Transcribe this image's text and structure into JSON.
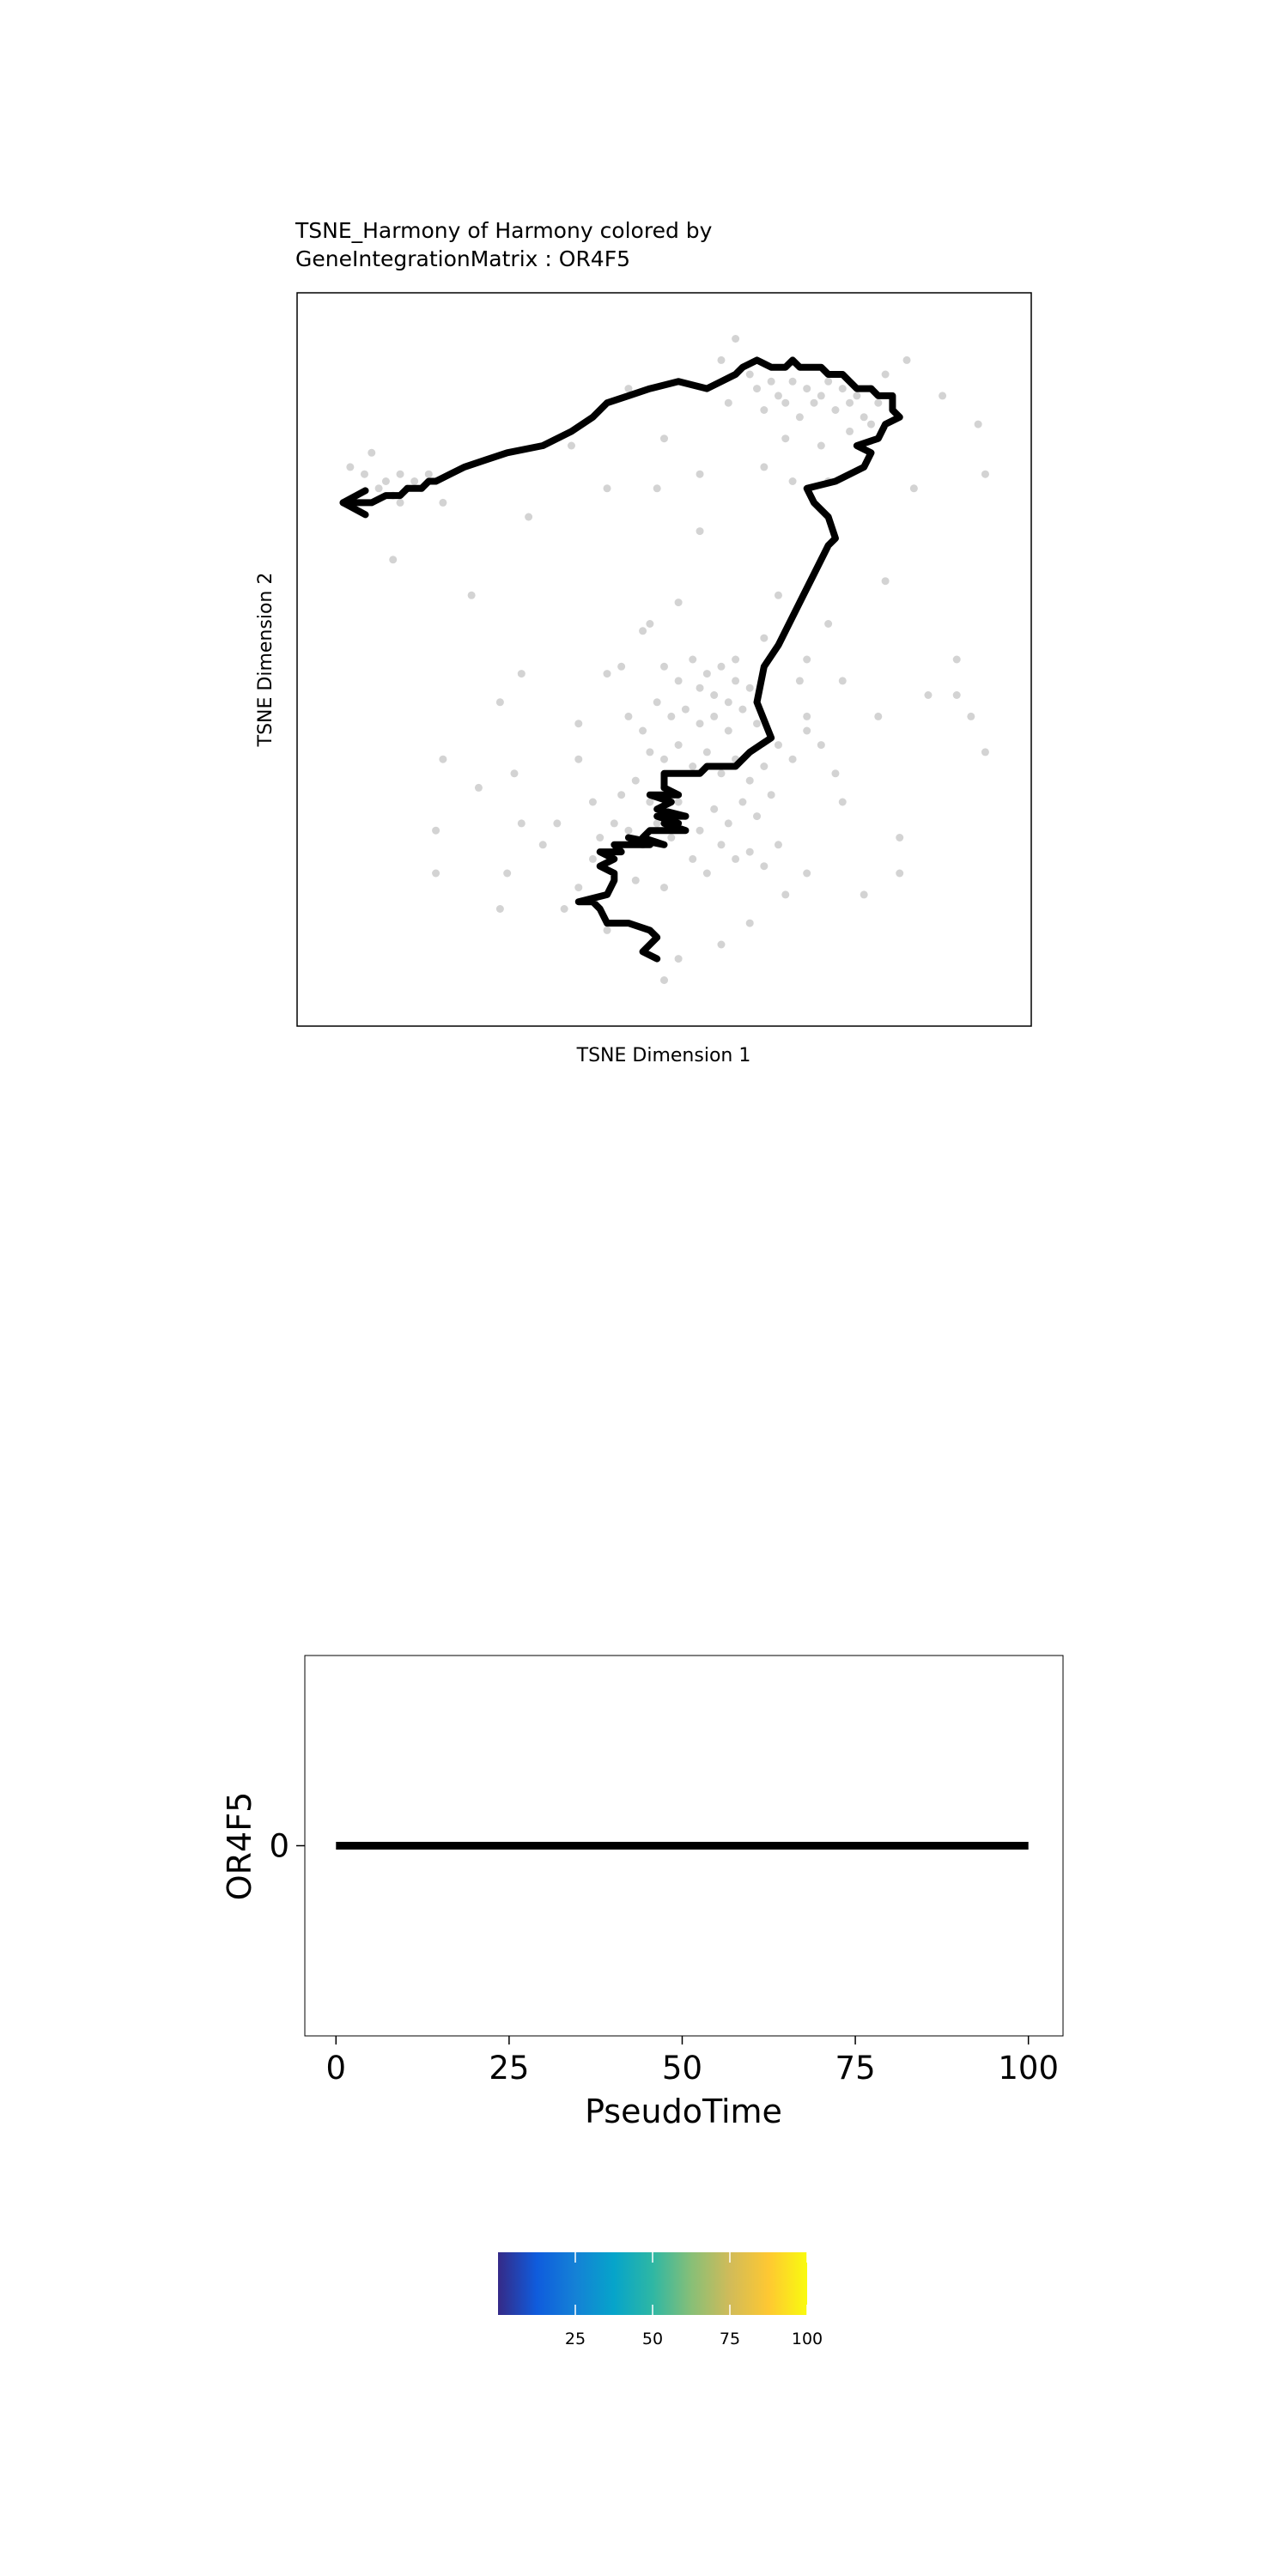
{
  "chart_data": [
    {
      "type": "scatter",
      "title_line1": "TSNE_Harmony of Harmony colored by",
      "title_line2": "GeneIntegrationMatrix : OR4F5",
      "xlabel": "TSNE Dimension 1",
      "ylabel": "TSNE Dimension 2",
      "xlim": [
        0,
        100
      ],
      "ylim": [
        0,
        100
      ],
      "grid": false,
      "point_color": "#d3d3d3",
      "trajectory_color": "#000000",
      "points": [
        [
          6,
          77
        ],
        [
          8,
          76
        ],
        [
          10,
          74
        ],
        [
          11,
          75
        ],
        [
          12,
          73
        ],
        [
          13,
          76
        ],
        [
          14,
          74
        ],
        [
          15,
          75
        ],
        [
          16,
          74
        ],
        [
          17,
          76
        ],
        [
          19,
          72
        ],
        [
          13,
          72
        ],
        [
          12,
          64
        ],
        [
          9,
          79
        ],
        [
          23,
          59
        ],
        [
          31,
          70
        ],
        [
          37,
          80
        ],
        [
          45,
          88
        ],
        [
          50,
          81
        ],
        [
          55,
          76
        ],
        [
          58,
          92
        ],
        [
          59,
          86
        ],
        [
          60,
          95
        ],
        [
          62,
          90
        ],
        [
          63,
          88
        ],
        [
          64,
          85
        ],
        [
          65,
          89
        ],
        [
          66,
          87
        ],
        [
          67,
          86
        ],
        [
          68,
          89
        ],
        [
          69,
          84
        ],
        [
          70,
          88
        ],
        [
          71,
          86
        ],
        [
          72,
          87
        ],
        [
          73,
          89
        ],
        [
          74,
          85
        ],
        [
          75,
          88
        ],
        [
          76,
          86
        ],
        [
          77,
          87
        ],
        [
          78,
          84
        ],
        [
          79,
          88
        ],
        [
          80,
          86
        ],
        [
          81,
          90
        ],
        [
          67,
          81
        ],
        [
          72,
          80
        ],
        [
          76,
          82
        ],
        [
          79,
          83
        ],
        [
          84,
          92
        ],
        [
          89,
          87
        ],
        [
          94,
          83
        ],
        [
          95,
          76
        ],
        [
          85,
          74
        ],
        [
          64,
          77
        ],
        [
          68,
          75
        ],
        [
          73,
          75
        ],
        [
          55,
          68
        ],
        [
          49,
          74
        ],
        [
          42,
          74
        ],
        [
          81,
          61
        ],
        [
          73,
          55
        ],
        [
          66,
          59
        ],
        [
          47,
          54
        ],
        [
          44,
          49
        ],
        [
          50,
          49
        ],
        [
          52,
          47
        ],
        [
          54,
          50
        ],
        [
          55,
          46
        ],
        [
          56,
          48
        ],
        [
          57,
          45
        ],
        [
          58,
          49
        ],
        [
          59,
          44
        ],
        [
          60,
          47
        ],
        [
          61,
          43
        ],
        [
          62,
          46
        ],
        [
          63,
          41
        ],
        [
          59,
          40
        ],
        [
          57,
          42
        ],
        [
          55,
          41
        ],
        [
          53,
          43
        ],
        [
          51,
          42
        ],
        [
          49,
          44
        ],
        [
          47,
          40
        ],
        [
          45,
          42
        ],
        [
          48,
          37
        ],
        [
          50,
          36
        ],
        [
          52,
          38
        ],
        [
          54,
          35
        ],
        [
          56,
          37
        ],
        [
          58,
          34
        ],
        [
          60,
          36
        ],
        [
          62,
          33
        ],
        [
          64,
          35
        ],
        [
          66,
          38
        ],
        [
          68,
          36
        ],
        [
          70,
          40
        ],
        [
          65,
          31
        ],
        [
          63,
          28
        ],
        [
          61,
          30
        ],
        [
          59,
          27
        ],
        [
          57,
          29
        ],
        [
          55,
          26
        ],
        [
          53,
          28
        ],
        [
          51,
          25
        ],
        [
          49,
          27
        ],
        [
          47,
          24
        ],
        [
          45,
          26
        ],
        [
          43,
          23
        ],
        [
          41,
          25
        ],
        [
          44,
          31
        ],
        [
          46,
          33
        ],
        [
          48,
          30
        ],
        [
          50,
          32
        ],
        [
          52,
          30
        ],
        [
          54,
          22
        ],
        [
          56,
          20
        ],
        [
          58,
          24
        ],
        [
          60,
          22
        ],
        [
          62,
          23
        ],
        [
          64,
          21
        ],
        [
          66,
          24
        ],
        [
          69,
          47
        ],
        [
          70,
          42
        ],
        [
          72,
          38
        ],
        [
          74,
          34
        ],
        [
          75,
          30
        ],
        [
          30,
          48
        ],
        [
          27,
          44
        ],
        [
          38,
          41
        ],
        [
          38,
          36
        ],
        [
          35,
          27
        ],
        [
          30,
          27
        ],
        [
          33,
          24
        ],
        [
          28,
          20
        ],
        [
          18,
          26
        ],
        [
          18,
          20
        ],
        [
          27,
          15
        ],
        [
          36,
          15
        ],
        [
          42,
          12
        ],
        [
          52,
          8
        ],
        [
          58,
          10
        ],
        [
          62,
          13
        ],
        [
          67,
          17
        ],
        [
          70,
          20
        ],
        [
          78,
          17
        ],
        [
          83,
          25
        ],
        [
          83,
          20
        ],
        [
          91,
          50
        ],
        [
          91,
          45
        ],
        [
          93,
          42
        ],
        [
          95,
          37
        ],
        [
          87,
          45
        ],
        [
          80,
          42
        ],
        [
          75,
          47
        ],
        [
          70,
          50
        ],
        [
          64,
          53
        ],
        [
          60,
          50
        ],
        [
          42,
          48
        ],
        [
          48,
          55
        ],
        [
          52,
          58
        ],
        [
          43,
          27
        ],
        [
          40,
          30
        ],
        [
          46,
          19
        ],
        [
          50,
          18
        ],
        [
          40,
          22
        ],
        [
          38,
          18
        ],
        [
          29,
          34
        ],
        [
          24,
          32
        ],
        [
          19,
          36
        ],
        [
          50,
          5
        ]
      ],
      "trajectory": [
        [
          49,
          8
        ],
        [
          47,
          9
        ],
        [
          49,
          11
        ],
        [
          48,
          12
        ],
        [
          45,
          13
        ],
        [
          42,
          13
        ],
        [
          41,
          15
        ],
        [
          40,
          16
        ],
        [
          38,
          16
        ],
        [
          42,
          17
        ],
        [
          43,
          19
        ],
        [
          43,
          20
        ],
        [
          41,
          21
        ],
        [
          43,
          22
        ],
        [
          41,
          23
        ],
        [
          44,
          23
        ],
        [
          43,
          24
        ],
        [
          48,
          24
        ],
        [
          45,
          25
        ],
        [
          50,
          24
        ],
        [
          47,
          25
        ],
        [
          48,
          26
        ],
        [
          53,
          26
        ],
        [
          50,
          27
        ],
        [
          52,
          27
        ],
        [
          49,
          28
        ],
        [
          53,
          28
        ],
        [
          49,
          29
        ],
        [
          51,
          30
        ],
        [
          48,
          31
        ],
        [
          52,
          31
        ],
        [
          50,
          32
        ],
        [
          50,
          34
        ],
        [
          55,
          34
        ],
        [
          56,
          35
        ],
        [
          60,
          35
        ],
        [
          62,
          37
        ],
        [
          65,
          39
        ],
        [
          63,
          44
        ],
        [
          64,
          49
        ],
        [
          66,
          52
        ],
        [
          67,
          54
        ],
        [
          69,
          58
        ],
        [
          71,
          62
        ],
        [
          73,
          66
        ],
        [
          74,
          67
        ],
        [
          73,
          70
        ],
        [
          71,
          72
        ],
        [
          70,
          74
        ],
        [
          74,
          75
        ],
        [
          78,
          77
        ],
        [
          79,
          79
        ],
        [
          77,
          80
        ],
        [
          80,
          81
        ],
        [
          81,
          83
        ],
        [
          83,
          84
        ],
        [
          82,
          85
        ],
        [
          82,
          87
        ],
        [
          80,
          87
        ],
        [
          79,
          88
        ],
        [
          77,
          88
        ],
        [
          76,
          89
        ],
        [
          75,
          90
        ],
        [
          73,
          90
        ],
        [
          72,
          91
        ],
        [
          69,
          91
        ],
        [
          68,
          92
        ],
        [
          67,
          91
        ],
        [
          65,
          91
        ],
        [
          63,
          92
        ],
        [
          61,
          91
        ],
        [
          60,
          90
        ],
        [
          58,
          89
        ],
        [
          56,
          88
        ],
        [
          52,
          89
        ],
        [
          48,
          88
        ],
        [
          45,
          87
        ],
        [
          42,
          86
        ],
        [
          40,
          84
        ],
        [
          37,
          82
        ],
        [
          33,
          80
        ],
        [
          28,
          79
        ],
        [
          25,
          78
        ],
        [
          22,
          77
        ],
        [
          20,
          76
        ],
        [
          18,
          75
        ],
        [
          17,
          75
        ],
        [
          16,
          74
        ],
        [
          14,
          74
        ],
        [
          13,
          73
        ],
        [
          11,
          73
        ],
        [
          9,
          72
        ],
        [
          5,
          72
        ]
      ]
    },
    {
      "type": "line",
      "xlabel": "PseudoTime",
      "ylabel": "OR4F5",
      "xlim": [
        -4.5,
        105
      ],
      "ylim": [
        -1,
        1
      ],
      "xticks": [
        "0",
        "25",
        "50",
        "75",
        "100"
      ],
      "xtick_values": [
        0,
        25,
        50,
        75,
        100
      ],
      "yticks": [
        "0"
      ],
      "ytick_values": [
        0
      ],
      "grid": false,
      "x": [
        0,
        100
      ],
      "y": [
        0,
        0
      ],
      "line_color": "#000000"
    },
    {
      "type": "colorbar",
      "range": [
        0,
        100
      ],
      "tick_values": [
        25,
        50,
        75,
        100
      ],
      "tick_labels": [
        "25",
        "50",
        "75",
        "100"
      ],
      "colors": [
        "#352A87",
        "#0F5CDD",
        "#1481D6",
        "#06A4CA",
        "#2EB7A4",
        "#87BF77",
        "#D1BB59",
        "#FEC832",
        "#F9FB0E"
      ]
    }
  ]
}
